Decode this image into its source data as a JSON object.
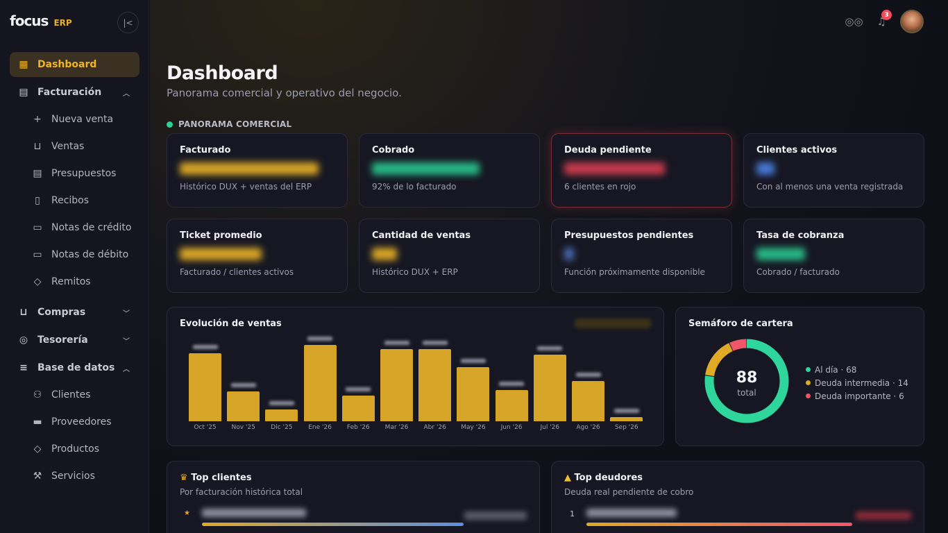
{
  "app": {
    "brand": "focus",
    "erp_label": "ERP"
  },
  "sidebar": {
    "items": [
      {
        "label": "Dashboard"
      },
      {
        "label": "Facturación"
      },
      {
        "label": "Nueva venta"
      },
      {
        "label": "Ventas"
      },
      {
        "label": "Presupuestos"
      },
      {
        "label": "Recibos"
      },
      {
        "label": "Notas de crédito"
      },
      {
        "label": "Notas de débito"
      },
      {
        "label": "Remitos"
      },
      {
        "label": "Compras"
      },
      {
        "label": "Tesorería"
      },
      {
        "label": "Base de datos"
      },
      {
        "label": "Clientes"
      },
      {
        "label": "Proveedores"
      },
      {
        "label": "Productos"
      },
      {
        "label": "Servicios"
      }
    ]
  },
  "header": {
    "notification_count": "3"
  },
  "page": {
    "title": "Dashboard",
    "subtitle": "Panorama comercial y operativo del negocio.",
    "section": "PANORAMA COMERCIAL"
  },
  "cards": [
    {
      "title": "Facturado",
      "note": "Histórico DUX + ventas del ERP"
    },
    {
      "title": "Cobrado",
      "note": "92% de lo facturado"
    },
    {
      "title": "Deuda pendiente",
      "note": "6 clientes en rojo"
    },
    {
      "title": "Clientes activos",
      "note": "Con al menos una venta registrada"
    },
    {
      "title": "Ticket promedio",
      "note": "Facturado / clientes activos"
    },
    {
      "title": "Cantidad de ventas",
      "note": "Histórico DUX + ERP"
    },
    {
      "title": "Presupuestos pendientes",
      "note": "Función próximamente disponible"
    },
    {
      "title": "Tasa de cobranza",
      "note": "Cobrado / facturado"
    }
  ],
  "sales_panel": {
    "title": "Evolución de ventas"
  },
  "chart_data": {
    "type": "bar",
    "categories": [
      "Oct '25",
      "Nov '25",
      "Dic '25",
      "Ene '26",
      "Feb '26",
      "Mar '26",
      "Abr '26",
      "May '26",
      "Jun '26",
      "Jul '26",
      "Ago '26",
      "Sep '26"
    ],
    "values": [
      98,
      43,
      17,
      110,
      37,
      104,
      104,
      78,
      45,
      96,
      58,
      6
    ],
    "ylim": [
      0,
      110
    ],
    "color": "#d6a426",
    "value_labels_hidden": true
  },
  "semaforo": {
    "title": "Semáforo de cartera",
    "total": "88",
    "total_label": "total",
    "segments": [
      {
        "label": "Al día · 68",
        "value": 68,
        "color": "#2ed69b"
      },
      {
        "label": "Deuda intermedia · 14",
        "value": 14,
        "color": "#e0a928"
      },
      {
        "label": "Deuda importante · 6",
        "value": 6,
        "color": "#f0566a"
      }
    ]
  },
  "top_clients": {
    "title": "Top clientes",
    "subtitle": "Por facturación histórica total",
    "first_rank": "★"
  },
  "top_debtors": {
    "title": "Top deudores",
    "subtitle": "Deuda real pendiente de cobro",
    "first_rank": "1"
  }
}
